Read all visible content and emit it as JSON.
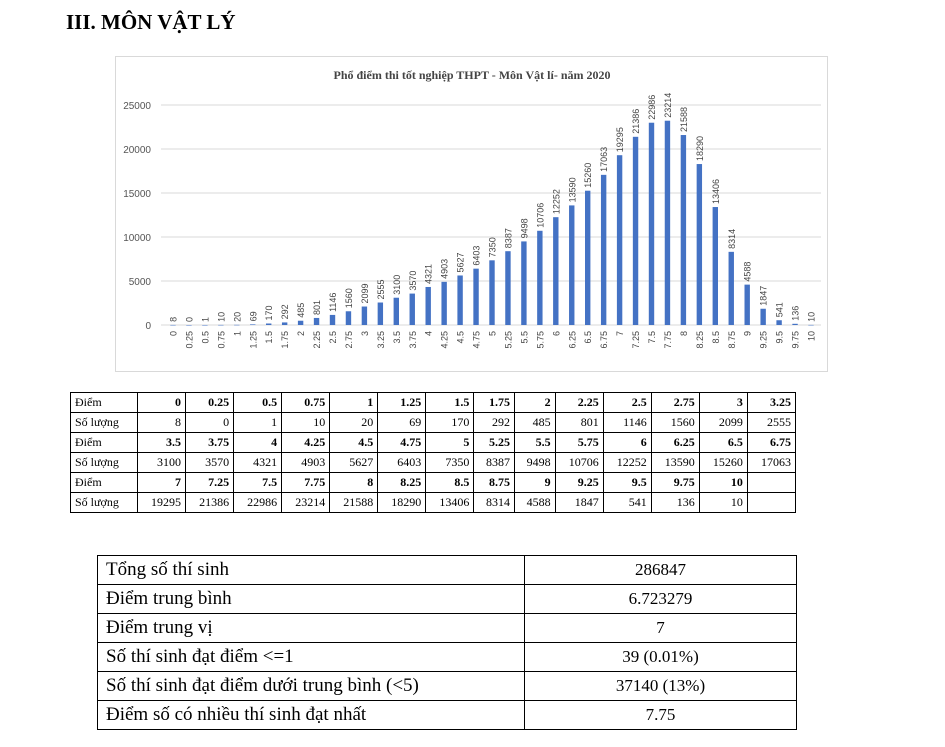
{
  "heading": "III. MÔN VẬT LÝ",
  "chart_data": {
    "type": "bar",
    "title": "Phổ điểm thi tốt nghiệp THPT - Môn Vật lí- năm 2020",
    "categories": [
      "0",
      "0.25",
      "0.5",
      "0.75",
      "1",
      "1.25",
      "1.5",
      "1.75",
      "2",
      "2.25",
      "2.5",
      "2.75",
      "3",
      "3.25",
      "3.5",
      "3.75",
      "4",
      "4.25",
      "4.5",
      "4.75",
      "5",
      "5.25",
      "5.5",
      "5.75",
      "6",
      "6.25",
      "6.5",
      "6.75",
      "7",
      "7.25",
      "7.5",
      "7.75",
      "8",
      "8.25",
      "8.5",
      "8.75",
      "9",
      "9.25",
      "9.5",
      "9.75",
      "10"
    ],
    "values": [
      8,
      0,
      1,
      10,
      20,
      69,
      170,
      292,
      485,
      801,
      1146,
      1560,
      2099,
      2555,
      3100,
      3570,
      4321,
      4903,
      5627,
      6403,
      7350,
      8387,
      9498,
      10706,
      12252,
      13590,
      15260,
      17063,
      19295,
      21386,
      22986,
      23214,
      21588,
      18290,
      13406,
      8314,
      4588,
      1847,
      541,
      136,
      10
    ],
    "yticks": [
      0,
      5000,
      10000,
      15000,
      20000,
      25000
    ],
    "ylim": [
      0,
      25000
    ],
    "xlabel": "",
    "ylabel": "",
    "grid": true,
    "color": "#4472c4"
  },
  "score_table": {
    "point_label": "Điểm",
    "count_label": "Số lượng",
    "blocks": [
      {
        "points": [
          "0",
          "0.25",
          "0.5",
          "0.75",
          "1",
          "1.25",
          "1.5",
          "1.75",
          "2",
          "2.25",
          "2.5",
          "2.75",
          "3",
          "3.25"
        ],
        "counts": [
          "8",
          "0",
          "1",
          "10",
          "20",
          "69",
          "170",
          "292",
          "485",
          "801",
          "1146",
          "1560",
          "2099",
          "2555"
        ]
      },
      {
        "points": [
          "3.5",
          "3.75",
          "4",
          "4.25",
          "4.5",
          "4.75",
          "5",
          "5.25",
          "5.5",
          "5.75",
          "6",
          "6.25",
          "6.5",
          "6.75"
        ],
        "counts": [
          "3100",
          "3570",
          "4321",
          "4903",
          "5627",
          "6403",
          "7350",
          "8387",
          "9498",
          "10706",
          "12252",
          "13590",
          "15260",
          "17063"
        ]
      },
      {
        "points": [
          "7",
          "7.25",
          "7.5",
          "7.75",
          "8",
          "8.25",
          "8.5",
          "8.75",
          "9",
          "9.25",
          "9.5",
          "9.75",
          "10",
          ""
        ],
        "counts": [
          "19295",
          "21386",
          "22986",
          "23214",
          "21588",
          "18290",
          "13406",
          "8314",
          "4588",
          "1847",
          "541",
          "136",
          "10",
          ""
        ]
      }
    ]
  },
  "summary": [
    {
      "label": "Tổng số thí sinh",
      "value": "286847"
    },
    {
      "label": "Điểm trung bình",
      "value": "6.723279"
    },
    {
      "label": "Điểm trung vị",
      "value": "7"
    },
    {
      "label": "Số thí sinh đạt điểm <=1",
      "value": "39 (0.01%)"
    },
    {
      "label": "Số thí sinh đạt điểm dưới trung bình (<5)",
      "value": "37140 (13%)"
    },
    {
      "label": "Điểm số có nhiều thí sinh đạt nhất",
      "value": "7.75"
    }
  ]
}
